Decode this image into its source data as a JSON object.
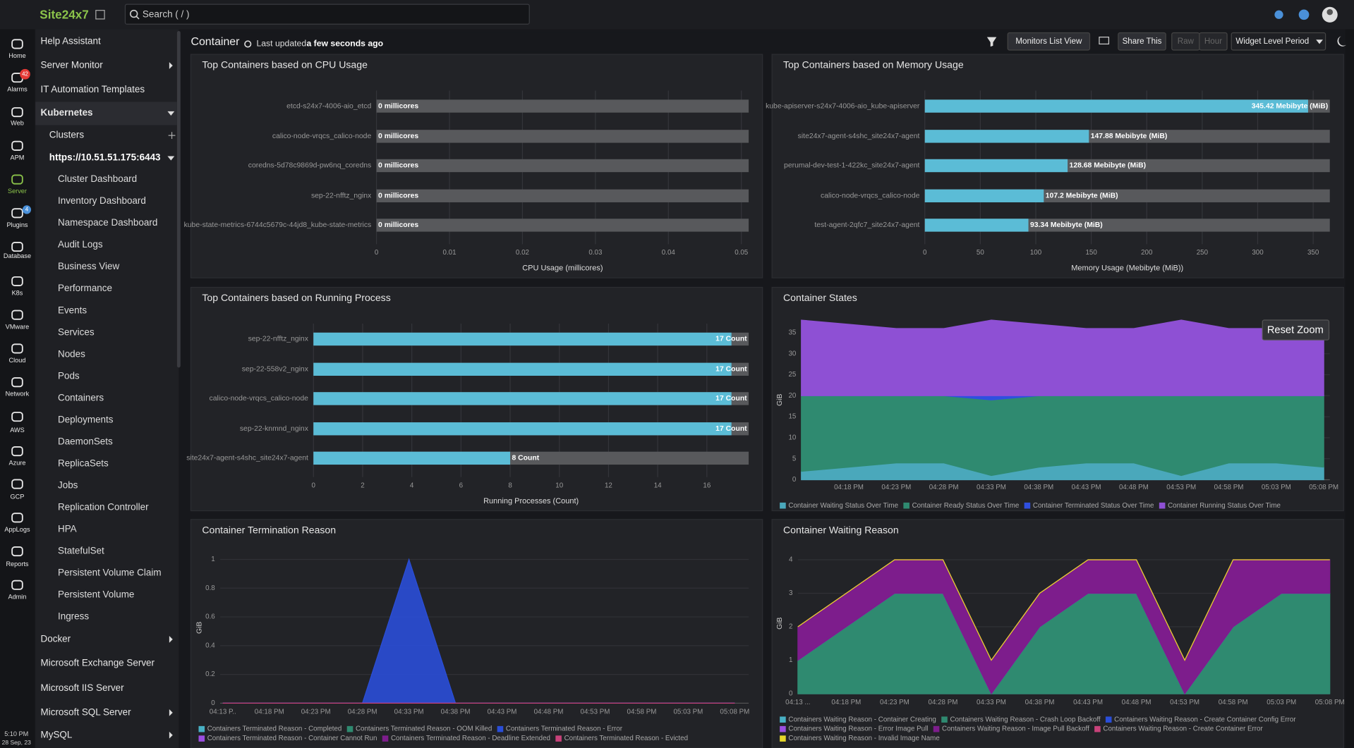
{
  "header": {
    "logo": "Site24x7",
    "search": "Search ( / )"
  },
  "nav": {
    "items": [
      "Home",
      "Alarms",
      "Web",
      "APM",
      "Server",
      "Plugins",
      "Database",
      "K8s",
      "VMware",
      "Cloud",
      "Network",
      "AWS",
      "Azure",
      "GCP",
      "AppLogs",
      "Reports",
      "Admin"
    ],
    "badges": {
      "alarms": 42,
      "plugins": 4
    },
    "time": "5:10 PM",
    "date": "28 Sep, 23"
  },
  "menu": {
    "top": [
      "Help Assistant",
      "Server Monitor",
      "IT Automation Templates",
      "Kubernetes"
    ],
    "clusters": "Clusters",
    "cluster": "https://10.51.51.175:6443",
    "cluster_items": [
      "Cluster Dashboard",
      "Inventory Dashboard",
      "Namespace Dashboard",
      "Audit Logs",
      "Business View",
      "Performance",
      "Events",
      "Services",
      "Nodes",
      "Pods",
      "Containers",
      "Deployments",
      "DaemonSets",
      "ReplicaSets",
      "Jobs",
      "Replication Controller",
      "HPA",
      "StatefulSet",
      "Persistent Volume Claim",
      "Persistent Volume",
      "Ingress"
    ],
    "bottom": [
      "Docker",
      "Microsoft Exchange Server",
      "Microsoft IIS Server",
      "Microsoft SQL Server",
      "MySQL"
    ]
  },
  "toolbar": {
    "title": "Container",
    "updated_label": "Last updated",
    "updated_value": "a few seconds ago",
    "buttons": [
      "Monitors List View",
      "Share This",
      "Raw",
      "Hour",
      "Widget Level Period"
    ]
  },
  "chart_data": [
    {
      "type": "hbar",
      "title": "Top Containers based on CPU Usage",
      "categories": [
        "etcd-s24x7-4006-aio_etcd",
        "calico-node-vrqcs_calico-node",
        "coredns-5d78c9869d-pw6nq_coredns",
        "sep-22-nfftz_nginx",
        "kube-state-metrics-6744c5679c-44jd8_kube-state-metrics"
      ],
      "values": [
        0,
        0,
        0,
        0,
        0
      ],
      "value_labels": [
        "0 millicores",
        "0 millicores",
        "0 millicores",
        "0 millicores",
        "0 millicores"
      ],
      "xlabel": "CPU Usage (millicores)",
      "xlim": [
        0,
        0.051
      ],
      "xticks": [
        0,
        0.01,
        0.02,
        0.03,
        0.04,
        0.05
      ],
      "color": "#5bbcd6",
      "grid": true
    },
    {
      "type": "hbar",
      "title": "Top Containers based on Memory Usage",
      "categories": [
        "kube-apiserver-s24x7-4006-aio_kube-apiserver",
        "site24x7-agent-s4shc_site24x7-agent",
        "perumal-dev-test-1-422kc_site24x7-agent",
        "calico-node-vrqcs_calico-node",
        "test-agent-2qfc7_site24x7-agent"
      ],
      "values": [
        345.42,
        147.88,
        128.68,
        107.2,
        93.34
      ],
      "value_labels": [
        "345.42 Mebibyte (MiB)",
        "147.88 Mebibyte (MiB)",
        "128.68 Mebibyte (MiB)",
        "107.2 Mebibyte (MiB)",
        "93.34 Mebibyte (MiB)"
      ],
      "xlabel": "Memory Usage (Mebibyte (MiB))",
      "xlim": [
        0,
        365
      ],
      "xticks": [
        0,
        50,
        100,
        150,
        200,
        250,
        300,
        350
      ],
      "color": "#5bbcd6",
      "grid": true
    },
    {
      "type": "hbar",
      "title": "Top Containers based on Running Process",
      "categories": [
        "sep-22-nfftz_nginx",
        "sep-22-558v2_nginx",
        "calico-node-vrqcs_calico-node",
        "sep-22-knmnd_nginx",
        "site24x7-agent-s4shc_site24x7-agent"
      ],
      "values": [
        17,
        17,
        17,
        17,
        8
      ],
      "value_labels": [
        "17 Count",
        "17 Count",
        "17 Count",
        "17 Count",
        "8 Count"
      ],
      "xlabel": "Running Processes (Count)",
      "xlim": [
        0,
        17.7
      ],
      "xticks": [
        0,
        2,
        4,
        6,
        8,
        10,
        12,
        14,
        16
      ],
      "color": "#5bbcd6",
      "grid": true
    },
    {
      "type": "stacked_area",
      "title": "Container States",
      "ylabel": "GiB",
      "button": "Reset Zoom",
      "categories": [
        null,
        "04:18 PM",
        "04:23 PM",
        "04:28 PM",
        "04:33 PM",
        "04:38 PM",
        "04:43 PM",
        "04:48 PM",
        "04:53 PM",
        "04:58 PM",
        "05:03 PM",
        "05:08 PM"
      ],
      "series": [
        {
          "name": "Container Waiting Status Over Time",
          "color": "#4aa8bb",
          "values": [
            2,
            3,
            4,
            4,
            1,
            3,
            4,
            4,
            1,
            4,
            4,
            3
          ]
        },
        {
          "name": "Container Ready Status Over Time",
          "color": "#2f8a70",
          "values": [
            18,
            17,
            16,
            16,
            18,
            17,
            16,
            16,
            19,
            16,
            16,
            17
          ]
        },
        {
          "name": "Container Terminated Status Over Time",
          "color": "#2f4fe0",
          "values": [
            0,
            0,
            0,
            0,
            1,
            0,
            0,
            0,
            0,
            0,
            0,
            0
          ]
        },
        {
          "name": "Container Running Status Over Time",
          "color": "#8e50d4",
          "values": [
            18,
            17,
            16,
            16,
            18,
            17,
            16,
            16,
            18,
            16,
            16,
            16
          ]
        }
      ],
      "ylim": [
        0,
        38
      ],
      "yticks": [
        0,
        5,
        10,
        15,
        20,
        25,
        30,
        35
      ],
      "grid": true
    },
    {
      "type": "area",
      "title": "Container Termination Reason",
      "ylabel": "GiB",
      "categories": [
        "04:13 P..",
        "04:18 PM",
        "04:23 PM",
        "04:28 PM",
        "04:33 PM",
        "04:38 PM",
        "04:43 PM",
        "04:48 PM",
        "04:53 PM",
        "04:58 PM",
        "05:03 PM",
        "05:08 PM"
      ],
      "series": [
        {
          "name": "Containers Terminated Reason - Completed",
          "color": "#48b0c4",
          "values": [
            0,
            0,
            0,
            0,
            0,
            0,
            0,
            0,
            0,
            0,
            0,
            0
          ]
        },
        {
          "name": "Containers Terminated Reason - OOM Killed",
          "color": "#2f8a70",
          "values": [
            0,
            0,
            0,
            0,
            0,
            0,
            0,
            0,
            0,
            0,
            0,
            0
          ]
        },
        {
          "name": "Containers Terminated Reason - Error",
          "color": "#2a4ed8",
          "values": [
            0,
            0,
            0,
            0,
            1,
            0,
            0,
            0,
            0,
            0,
            0,
            0
          ]
        },
        {
          "name": "Containers Terminated Reason - Container Cannot Run",
          "color": "#9a4ee0",
          "values": [
            0,
            0,
            0,
            0,
            0,
            0,
            0,
            0,
            0,
            0,
            0,
            0
          ]
        },
        {
          "name": "Containers Terminated Reason - Deadline Extended",
          "color": "#7d1d8c",
          "values": [
            0,
            0,
            0,
            0,
            0,
            0,
            0,
            0,
            0,
            0,
            0,
            0
          ]
        },
        {
          "name": "Containers Terminated Reason - Evicted",
          "color": "#c8427a",
          "values": [
            0,
            0,
            0,
            0,
            0,
            0,
            0,
            0,
            0,
            0,
            0,
            0
          ]
        }
      ],
      "ylim": [
        0,
        1.05
      ],
      "yticks": [
        0,
        0.2,
        0.4,
        0.6,
        0.8,
        1
      ],
      "grid": true
    },
    {
      "type": "stacked_area",
      "title": "Container Waiting Reason",
      "ylabel": "GiB",
      "categories": [
        "04:13 ...",
        "04:18 PM",
        "04:23 PM",
        "04:28 PM",
        "04:33 PM",
        "04:38 PM",
        "04:43 PM",
        "04:48 PM",
        "04:53 PM",
        "04:58 PM",
        "05:03 PM",
        "05:08 PM"
      ],
      "series": [
        {
          "name": "Containers Waiting Reason - Container Creating",
          "color": "#48b0c4",
          "values": [
            0,
            0,
            0,
            0,
            0,
            0,
            0,
            0,
            0,
            0,
            0,
            0
          ]
        },
        {
          "name": "Containers Waiting Reason - Crash Loop Backoff",
          "color": "#2f8a70",
          "values": [
            1,
            2,
            3,
            3,
            0,
            2,
            3,
            3,
            0,
            2,
            3,
            3
          ]
        },
        {
          "name": "Containers Waiting Reason - Create Container Config Error",
          "color": "#2a4ed8",
          "values": [
            0,
            0,
            0,
            0,
            0,
            0,
            0,
            0,
            0,
            0,
            0,
            0
          ]
        },
        {
          "name": "Containers Waiting Reason - Error Image Pull",
          "color": "#9a4ee0",
          "values": [
            0,
            0,
            0,
            0,
            0,
            0,
            0,
            0,
            0,
            0,
            0,
            0
          ]
        },
        {
          "name": "Containers Waiting Reason - Image Pull Backoff",
          "color": "#7d1d8c",
          "values": [
            1,
            1,
            1,
            1,
            1,
            1,
            1,
            1,
            1,
            2,
            1,
            1
          ]
        },
        {
          "name": "Containers Waiting Reason - Create Container Error",
          "color": "#c8427a",
          "values": [
            0,
            0,
            0,
            0,
            0,
            0,
            0,
            0,
            0,
            0,
            0,
            0
          ]
        },
        {
          "name": "Containers Waiting Reason - Invalid Image Name",
          "color": "#e5d62a",
          "values": [
            0,
            0,
            0,
            0,
            0,
            0,
            0,
            0,
            0,
            0,
            0,
            0
          ]
        }
      ],
      "ylim": [
        0,
        4.2
      ],
      "yticks": [
        0,
        1,
        2,
        3,
        4
      ],
      "grid": true
    }
  ]
}
